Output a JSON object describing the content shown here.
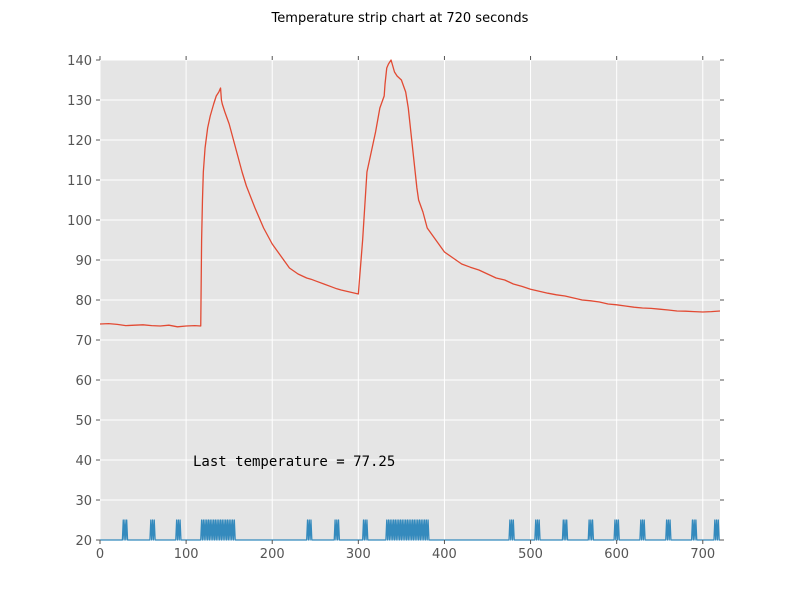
{
  "chart_data": {
    "type": "line",
    "title": "Temperature strip chart at 720 seconds",
    "xlabel": "",
    "ylabel": "",
    "xlim": [
      0,
      720
    ],
    "ylim": [
      20,
      140
    ],
    "x_ticks": [
      0,
      100,
      200,
      300,
      400,
      500,
      600,
      700
    ],
    "y_ticks": [
      20,
      30,
      40,
      50,
      60,
      70,
      80,
      90,
      100,
      110,
      120,
      130,
      140
    ],
    "grid": true,
    "annotation": {
      "text": "Last temperature = 77.25",
      "x": 108,
      "y": 38.5
    },
    "series": [
      {
        "color": "#e24a33",
        "x": [
          0,
          10,
          20,
          30,
          40,
          50,
          60,
          70,
          80,
          90,
          100,
          110,
          117,
          118,
          119,
          120,
          122,
          125,
          128,
          132,
          135,
          138,
          140,
          141,
          142,
          145,
          150,
          155,
          160,
          165,
          170,
          180,
          190,
          200,
          210,
          220,
          230,
          240,
          245,
          250,
          260,
          270,
          275,
          280,
          290,
          300,
          305,
          310,
          320,
          325,
          330,
          331,
          332,
          333,
          335,
          338,
          342,
          345,
          350,
          355,
          358,
          360,
          362,
          364,
          366,
          368,
          370,
          375,
          380,
          390,
          400,
          410,
          420,
          430,
          440,
          450,
          460,
          470,
          480,
          490,
          500,
          510,
          520,
          530,
          540,
          550,
          560,
          570,
          580,
          590,
          600,
          610,
          620,
          630,
          640,
          650,
          660,
          670,
          680,
          690,
          700,
          710,
          720
        ],
        "y": [
          74,
          74.1,
          73.9,
          73.6,
          73.7,
          73.8,
          73.6,
          73.5,
          73.7,
          73.3,
          73.5,
          73.6,
          73.5,
          95,
          105,
          112,
          118,
          123,
          126,
          129,
          131,
          132,
          133,
          130,
          129,
          127,
          124,
          120,
          116,
          112,
          108.5,
          103,
          98,
          94,
          91,
          88,
          86.5,
          85.5,
          85.2,
          84.8,
          84,
          83.2,
          82.8,
          82.5,
          82,
          81.5,
          95,
          112,
          122,
          128,
          131,
          134,
          136,
          138,
          139,
          140,
          137,
          136,
          135,
          132,
          128,
          124,
          120,
          116,
          112,
          108,
          105,
          102,
          98,
          95,
          92,
          90.5,
          89,
          88.2,
          87.5,
          86.5,
          85.5,
          85,
          84,
          83.4,
          82.7,
          82.2,
          81.7,
          81.3,
          81,
          80.5,
          80,
          79.8,
          79.5,
          79,
          78.8,
          78.5,
          78.2,
          78,
          77.9,
          77.7,
          77.5,
          77.25,
          77.2,
          77.1,
          77,
          77.1,
          77.25
        ]
      },
      {
        "color": "#348abd",
        "x": [
          0,
          26,
          27,
          28,
          29,
          30,
          31,
          32,
          33,
          58,
          59,
          60,
          61,
          62,
          63,
          64,
          65,
          88,
          89,
          90,
          91,
          92,
          93,
          94,
          95,
          117,
          118,
          119,
          120,
          121,
          122,
          123,
          124,
          125,
          126,
          127,
          128,
          129,
          130,
          131,
          132,
          133,
          134,
          135,
          136,
          137,
          138,
          139,
          140,
          141,
          142,
          143,
          144,
          145,
          146,
          147,
          148,
          149,
          150,
          151,
          152,
          153,
          154,
          155,
          156,
          157,
          158,
          240,
          241,
          242,
          243,
          244,
          245,
          246,
          247,
          272,
          273,
          274,
          275,
          276,
          277,
          278,
          279,
          305,
          306,
          307,
          308,
          309,
          310,
          311,
          312,
          332,
          333,
          334,
          335,
          336,
          337,
          338,
          339,
          340,
          341,
          342,
          343,
          344,
          345,
          346,
          347,
          348,
          349,
          350,
          351,
          352,
          353,
          354,
          355,
          356,
          357,
          358,
          359,
          360,
          361,
          362,
          363,
          364,
          365,
          366,
          367,
          368,
          369,
          370,
          371,
          372,
          373,
          374,
          375,
          376,
          377,
          378,
          379,
          380,
          381,
          382,
          475,
          476,
          477,
          478,
          479,
          480,
          481,
          482,
          505,
          506,
          507,
          508,
          509,
          510,
          511,
          512,
          537,
          538,
          539,
          540,
          541,
          542,
          543,
          544,
          567,
          568,
          569,
          570,
          571,
          572,
          573,
          574,
          597,
          598,
          599,
          600,
          601,
          602,
          603,
          627,
          628,
          629,
          630,
          631,
          632,
          633,
          657,
          658,
          659,
          660,
          661,
          662,
          663,
          687,
          688,
          689,
          690,
          691,
          692,
          693,
          694,
          713,
          714,
          715,
          716,
          717,
          718,
          719,
          720
        ],
        "y": [
          20,
          20,
          25,
          20,
          25,
          20,
          25,
          20,
          20,
          20,
          25,
          20,
          25,
          20,
          25,
          20,
          20,
          20,
          25,
          20,
          25,
          20,
          25,
          20,
          20,
          20,
          25,
          20,
          25,
          20,
          25,
          20,
          25,
          20,
          25,
          20,
          25,
          20,
          25,
          20,
          25,
          20,
          25,
          20,
          25,
          20,
          25,
          20,
          25,
          20,
          25,
          20,
          25,
          20,
          25,
          20,
          25,
          20,
          25,
          20,
          25,
          20,
          25,
          20,
          25,
          20,
          20,
          20,
          25,
          20,
          25,
          20,
          25,
          20,
          20,
          20,
          25,
          20,
          25,
          20,
          25,
          20,
          20,
          20,
          25,
          20,
          25,
          20,
          25,
          20,
          20,
          20,
          25,
          20,
          25,
          20,
          25,
          20,
          25,
          20,
          25,
          20,
          25,
          20,
          25,
          20,
          25,
          20,
          25,
          20,
          25,
          20,
          25,
          20,
          25,
          20,
          25,
          20,
          25,
          20,
          25,
          20,
          25,
          20,
          25,
          20,
          25,
          20,
          25,
          20,
          25,
          20,
          25,
          20,
          25,
          20,
          25,
          20,
          25,
          20,
          25,
          20,
          20,
          25,
          20,
          25,
          20,
          25,
          20,
          20,
          20,
          25,
          20,
          25,
          20,
          25,
          20,
          20,
          20,
          25,
          20,
          25,
          20,
          25,
          20,
          20,
          20,
          25,
          20,
          25,
          20,
          25,
          20,
          20,
          20,
          25,
          20,
          25,
          20,
          25,
          20,
          20,
          25,
          20,
          25,
          20,
          25,
          20,
          20,
          25,
          20,
          25,
          20,
          25,
          20,
          20,
          25,
          20,
          25,
          20,
          25,
          20,
          20,
          20,
          25,
          20,
          25,
          20,
          25,
          20,
          20
        ]
      }
    ]
  }
}
